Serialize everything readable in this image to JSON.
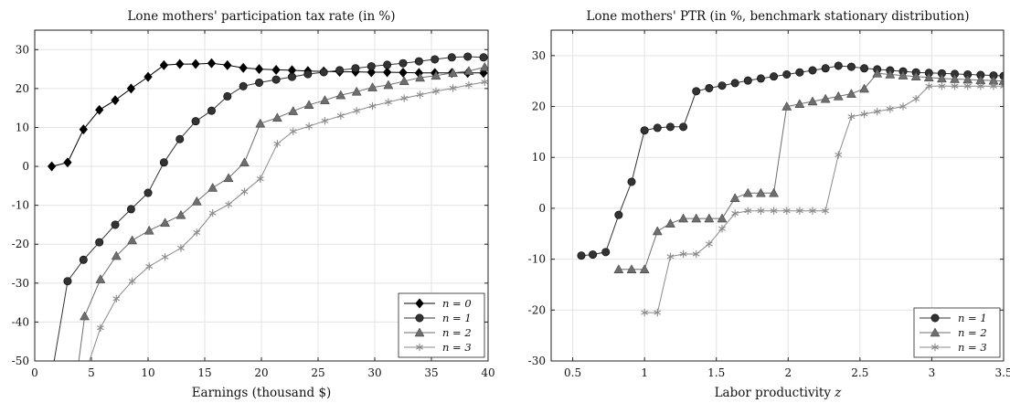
{
  "chart_data": [
    {
      "type": "line",
      "title": "Lone mothers' participation tax rate (in %)",
      "xlabel": "Earnings (thousand $)",
      "ylabel": "",
      "xlim": [
        0,
        40
      ],
      "ylim": [
        -50,
        35
      ],
      "xticks": [
        0,
        5,
        10,
        15,
        20,
        25,
        30,
        35,
        40
      ],
      "yticks": [
        -50,
        -40,
        -30,
        -20,
        -10,
        0,
        10,
        20,
        30
      ],
      "grid": true,
      "legend_position": "bottom-right",
      "series": [
        {
          "name": "n = 0",
          "color": "#000000",
          "marker": "diamond",
          "x": [
            1.5,
            2.9,
            4.3,
            5.7,
            7.1,
            8.5,
            10.0,
            11.4,
            12.8,
            14.2,
            15.6,
            17.0,
            18.4,
            19.8,
            21.3,
            22.7,
            24.1,
            25.5,
            26.9,
            28.3,
            29.7,
            31.1,
            32.5,
            33.9,
            35.3,
            36.8,
            38.2,
            39.6
          ],
          "y": [
            0,
            1,
            9.5,
            14.5,
            17,
            20,
            23,
            26,
            26.3,
            26.3,
            26.5,
            26,
            25.3,
            25,
            24.8,
            24.7,
            24.5,
            24.4,
            24.3,
            24.3,
            24.2,
            24.2,
            24.1,
            24,
            24,
            24,
            24,
            24
          ]
        },
        {
          "name": "n = 1",
          "color": "#333333",
          "marker": "circle",
          "x": [
            1.6,
            2.9,
            4.3,
            5.7,
            7.1,
            8.5,
            10.0,
            11.4,
            12.8,
            14.2,
            15.6,
            17.0,
            18.4,
            19.8,
            21.3,
            22.7,
            24.1,
            25.5,
            26.9,
            28.3,
            29.7,
            31.1,
            32.5,
            33.9,
            35.3,
            36.8,
            38.2,
            39.6
          ],
          "y": [
            -52,
            -29.5,
            -24,
            -19.5,
            -15,
            -11,
            -6.8,
            1,
            7,
            11.6,
            14.3,
            18,
            20.6,
            21.5,
            22.3,
            23,
            23.7,
            24.2,
            24.7,
            25.2,
            25.7,
            26.1,
            26.5,
            27,
            27.5,
            28,
            28.2,
            28
          ]
        },
        {
          "name": "n = 2",
          "color": "#6e6e6e",
          "marker": "triangle",
          "x": [
            3.8,
            4.4,
            5.8,
            7.2,
            8.6,
            10.1,
            11.5,
            12.9,
            14.3,
            15.7,
            17.1,
            18.5,
            19.9,
            21.4,
            22.8,
            24.2,
            25.6,
            27.0,
            28.4,
            29.8,
            31.2,
            32.6,
            34.0,
            35.4,
            36.9,
            38.3,
            39.7
          ],
          "y": [
            -52,
            -38.5,
            -29,
            -23,
            -19,
            -16.5,
            -14.5,
            -12.5,
            -9,
            -5.5,
            -3,
            1,
            11,
            12.5,
            14.2,
            15.8,
            17,
            18.3,
            19.2,
            20.3,
            20.9,
            21.9,
            22.8,
            23.3,
            24,
            24.5,
            25.5
          ]
        },
        {
          "name": "n = 3",
          "color": "#8a8a8a",
          "marker": "asterisk",
          "x": [
            4.6,
            5.8,
            7.2,
            8.6,
            10.1,
            11.5,
            12.9,
            14.3,
            15.7,
            17.1,
            18.5,
            19.9,
            21.4,
            22.8,
            24.2,
            25.6,
            27.0,
            28.4,
            29.8,
            31.2,
            32.6,
            34.0,
            35.4,
            36.9,
            38.3,
            39.7
          ],
          "y": [
            -52,
            -41.5,
            -34,
            -29.5,
            -25.7,
            -23.3,
            -21,
            -17,
            -12,
            -9.8,
            -6.5,
            -3.2,
            5.8,
            9,
            10.3,
            11.7,
            13,
            14.3,
            15.5,
            16.5,
            17.5,
            18.4,
            19.3,
            20.1,
            20.9,
            21.7
          ]
        }
      ]
    },
    {
      "type": "line",
      "title": "Lone mothers' PTR (in %, benchmark stationary distribution)",
      "xlabel": "Labor productivity",
      "xlabel_symbol": "z",
      "ylabel": "",
      "xlim": [
        0.35,
        3.5
      ],
      "ylim": [
        -30,
        35
      ],
      "xticks": [
        0.5,
        1,
        1.5,
        2,
        2.5,
        3,
        3.5
      ],
      "xtick_labels": [
        "0.5",
        "1",
        "1.5",
        "2",
        "2.5",
        "3",
        "3.5"
      ],
      "yticks": [
        -30,
        -20,
        -10,
        0,
        10,
        20,
        30
      ],
      "grid": true,
      "legend_position": "bottom-right",
      "series": [
        {
          "name": "n = 1",
          "color": "#333333",
          "marker": "circle",
          "x": [
            0.56,
            0.64,
            0.73,
            0.82,
            0.91,
            1.0,
            1.09,
            1.18,
            1.27,
            1.36,
            1.45,
            1.54,
            1.63,
            1.72,
            1.81,
            1.9,
            1.99,
            2.08,
            2.17,
            2.26,
            2.35,
            2.44,
            2.53,
            2.62,
            2.71,
            2.8,
            2.89,
            2.98,
            3.07,
            3.16,
            3.25,
            3.34,
            3.43,
            3.5
          ],
          "y": [
            -9.3,
            -9.1,
            -8.6,
            -1.3,
            5.2,
            15.3,
            15.8,
            16,
            16,
            23,
            23.6,
            24.1,
            24.6,
            25.1,
            25.5,
            25.9,
            26.3,
            26.7,
            27.1,
            27.5,
            28,
            27.8,
            27.5,
            27.3,
            27.1,
            26.9,
            26.7,
            26.6,
            26.5,
            26.4,
            26.3,
            26.2,
            26.1,
            26.0
          ]
        },
        {
          "name": "n = 2",
          "color": "#6e6e6e",
          "marker": "triangle",
          "x": [
            0.82,
            0.91,
            1.0,
            1.09,
            1.18,
            1.27,
            1.36,
            1.45,
            1.54,
            1.63,
            1.72,
            1.81,
            1.9,
            1.99,
            2.08,
            2.17,
            2.26,
            2.35,
            2.44,
            2.53,
            2.62,
            2.71,
            2.8,
            2.89,
            2.98,
            3.07,
            3.16,
            3.25,
            3.34,
            3.43,
            3.5
          ],
          "y": [
            -12,
            -12,
            -12,
            -4.5,
            -3,
            -2,
            -2,
            -2,
            -2,
            2,
            3,
            3,
            3,
            20,
            20.5,
            21,
            21.5,
            22,
            22.5,
            23.5,
            26.5,
            26.3,
            26.1,
            25.9,
            25.7,
            25.5,
            25.4,
            25.3,
            25.2,
            25.1,
            25.0
          ]
        },
        {
          "name": "n = 3",
          "color": "#8a8a8a",
          "marker": "asterisk",
          "x": [
            1.0,
            1.09,
            1.18,
            1.27,
            1.36,
            1.45,
            1.54,
            1.63,
            1.72,
            1.81,
            1.9,
            1.99,
            2.08,
            2.17,
            2.26,
            2.35,
            2.44,
            2.53,
            2.62,
            2.71,
            2.8,
            2.89,
            2.98,
            3.07,
            3.16,
            3.25,
            3.34,
            3.43,
            3.5
          ],
          "y": [
            -20.5,
            -20.5,
            -9.5,
            -9,
            -9,
            -7,
            -4,
            -1,
            -0.5,
            -0.5,
            -0.5,
            -0.5,
            -0.5,
            -0.5,
            -0.5,
            10.5,
            18,
            18.5,
            19,
            19.5,
            20,
            21.5,
            24,
            24,
            24,
            24,
            24,
            24,
            24
          ]
        }
      ]
    }
  ]
}
